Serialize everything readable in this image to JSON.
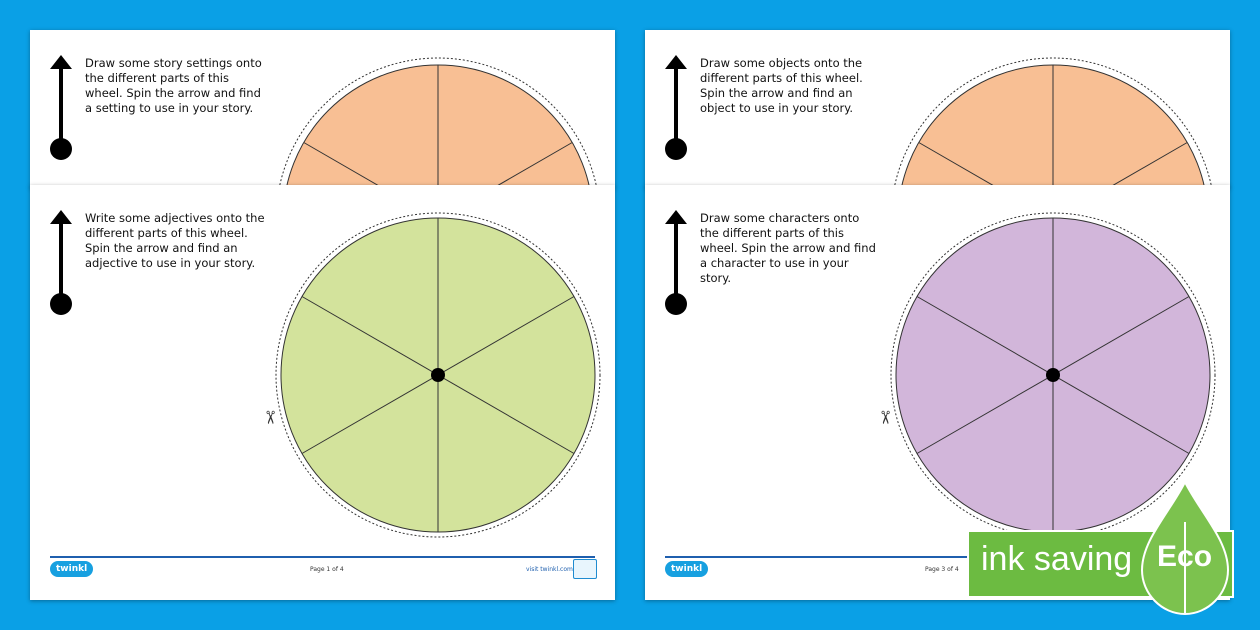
{
  "sheets": [
    {
      "instruction": "Draw some story settings onto the different parts of this wheel. Spin the arrow and find a setting to use in your story.",
      "wheel_color": "#f8bf94"
    },
    {
      "instruction": "Draw some objects onto the different parts of this wheel. Spin the arrow and find an object to use in your story.",
      "wheel_color": "#f8bf94"
    },
    {
      "instruction": "Write some adjectives onto the different parts of this wheel. Spin the arrow and find an adjective to use in your story.",
      "wheel_color": "#d3e39c",
      "page_label": "Page 1 of 4",
      "visit_label": "visit twinkl.com",
      "logo": "twinkl"
    },
    {
      "instruction": "Draw some characters onto the different parts of this wheel. Spin the arrow and find a character to use in your story.",
      "wheel_color": "#d2b6da",
      "page_label": "Page 3 of 4",
      "logo": "twinkl"
    }
  ],
  "badge": {
    "text": "ink saving",
    "eco": "Eco",
    "color": "#6cbb41"
  }
}
